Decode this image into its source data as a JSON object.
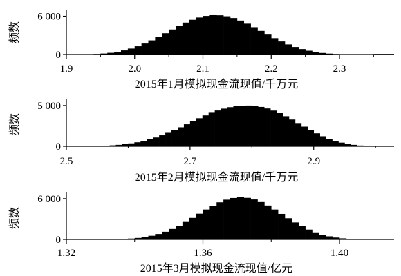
{
  "chart_data": [
    {
      "type": "bar",
      "xlabel": "2015年1月模拟现金流现值/千万元",
      "ylabel": "频数",
      "xlim": [
        1.9,
        2.38
      ],
      "ylim": [
        0,
        6600
      ],
      "xticks": [
        "1.9",
        "2.0",
        "2.1",
        "2.2",
        "2.3"
      ],
      "yticks": [
        "0",
        "6 000"
      ],
      "bin_width": 0.01,
      "bins_start": 1.9,
      "values": [
        5,
        10,
        20,
        40,
        80,
        150,
        260,
        420,
        640,
        930,
        1290,
        1720,
        2210,
        2760,
        3330,
        3920,
        4480,
        5000,
        5440,
        5800,
        6050,
        6170,
        6150,
        6000,
        5720,
        5320,
        4830,
        4280,
        3700,
        3120,
        2560,
        2040,
        1580,
        1180,
        850,
        590,
        390,
        240,
        140,
        75,
        40,
        18,
        8,
        3,
        1,
        0,
        0,
        0
      ]
    },
    {
      "type": "bar",
      "xlabel": "2015年2月模拟现金流现值/千万元",
      "ylabel": "频数",
      "xlim": [
        2.5,
        3.03
      ],
      "ylim": [
        0,
        5500
      ],
      "xticks": [
        "2.5",
        "2.7",
        "2.9"
      ],
      "yticks": [
        "0",
        "5 000"
      ],
      "bin_width": 0.01,
      "bins_start": 2.5,
      "values": [
        2,
        5,
        10,
        18,
        30,
        50,
        80,
        120,
        180,
        260,
        360,
        490,
        650,
        850,
        1080,
        1350,
        1650,
        1980,
        2330,
        2700,
        3070,
        3440,
        3790,
        4110,
        4390,
        4620,
        4800,
        4920,
        4990,
        5000,
        4950,
        4830,
        4640,
        4380,
        4060,
        3690,
        3280,
        2850,
        2410,
        1990,
        1590,
        1230,
        920,
        660,
        450,
        290,
        180,
        100,
        55,
        25,
        10,
        4,
        1
      ]
    },
    {
      "type": "bar",
      "xlabel": "2015年3月模拟现金流现值/亿元",
      "ylabel": "频数",
      "xlim": [
        1.32,
        1.416
      ],
      "ylim": [
        0,
        6600
      ],
      "xticks": [
        "1.32",
        "1.36",
        "1.40"
      ],
      "yticks": [
        "0",
        "6 000"
      ],
      "bin_width": 0.002,
      "bins_start": 1.32,
      "values": [
        0,
        0,
        1,
        2,
        5,
        10,
        20,
        40,
        75,
        130,
        220,
        350,
        540,
        800,
        1130,
        1540,
        2020,
        2570,
        3170,
        3790,
        4400,
        4970,
        5460,
        5850,
        6100,
        6200,
        6120,
        5880,
        5500,
        4990,
        4400,
        3760,
        3120,
        2500,
        1940,
        1450,
        1040,
        710,
        460,
        280,
        160,
        85,
        40,
        18,
        7,
        2,
        1,
        0
      ]
    }
  ]
}
